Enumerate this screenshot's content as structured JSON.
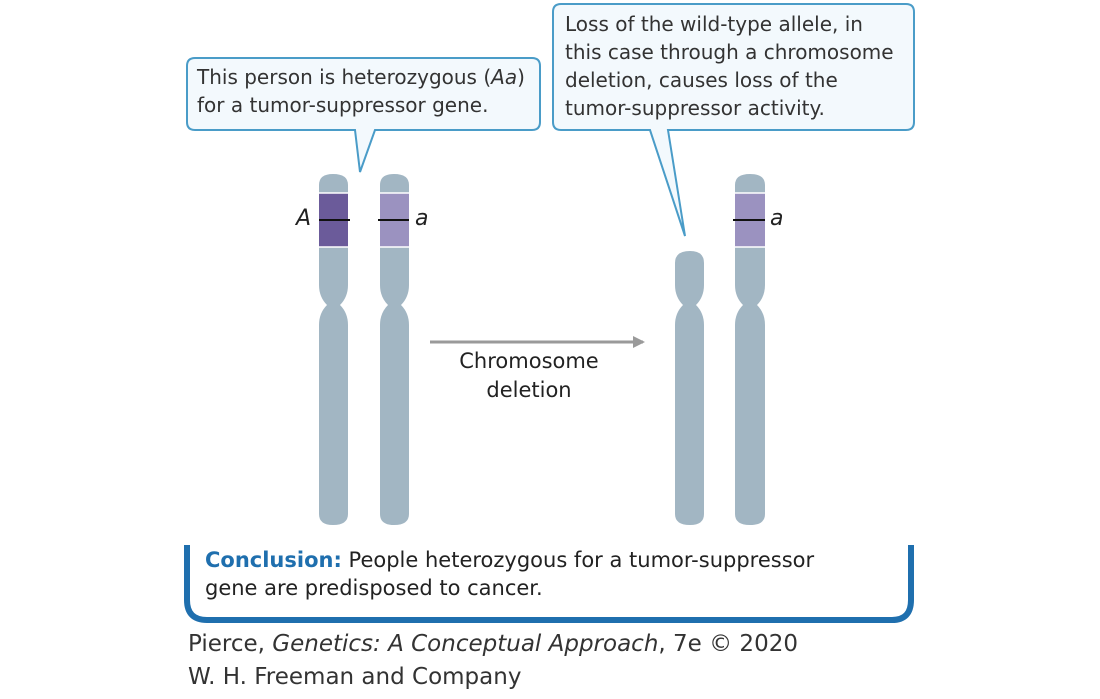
{
  "callouts": {
    "left": {
      "pre": "This person is heterozygous (",
      "italic": "Aa",
      "post": ")",
      "line2": "for a tumor-suppressor gene."
    },
    "right": {
      "lines": [
        "Loss of the wild-type allele, in",
        "this case through a chromosome",
        "deletion, causes loss of the",
        "tumor-suppressor activity."
      ]
    }
  },
  "alleles": {
    "dominant": "A",
    "recessive": "a"
  },
  "arrow": {
    "line1": "Chromosome",
    "line2": "deletion"
  },
  "conclusion": {
    "head": "Conclusion:",
    "text1": " People heterozygous for a tumor-suppressor",
    "text2": "gene are predisposed to cancer."
  },
  "credit": {
    "author": "Pierce, ",
    "title": "Genetics: A Conceptual Approach",
    "edition": ", 7e © 2020",
    "publisher": "W. H. Freeman and Company"
  },
  "colors": {
    "chromosome": "#a2b6c3",
    "band_dark": "#6b5b9a",
    "band_light": "#9b92c0",
    "callout_border": "#4a9cc8",
    "callout_fill": "#f3f9fd",
    "conclusion_accent": "#1f6fae",
    "arrow": "#9a9a9a"
  }
}
